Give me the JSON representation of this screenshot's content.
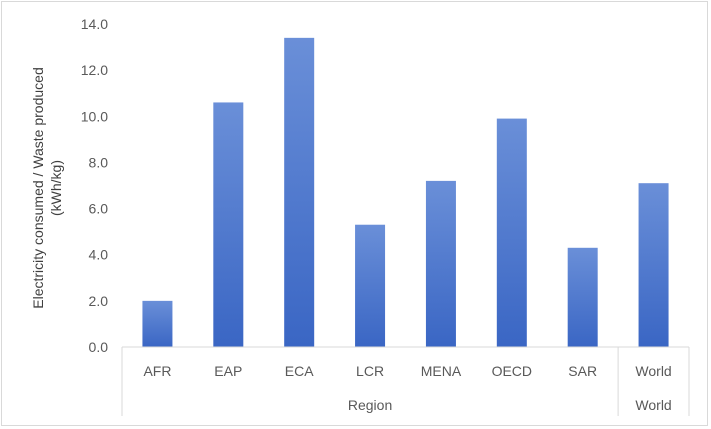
{
  "chart_data": {
    "type": "bar",
    "ylabel_lines": [
      "Electricity consumed / Waste produced",
      "(kWh/kg)"
    ],
    "ylim": [
      0,
      14
    ],
    "yticks": [
      "0.0",
      "2.0",
      "4.0",
      "6.0",
      "8.0",
      "10.0",
      "12.0",
      "14.0"
    ],
    "categories": [
      "AFR",
      "EAP",
      "ECA",
      "LCR",
      "MENA",
      "OECD",
      "SAR",
      "World"
    ],
    "values": [
      2.0,
      10.6,
      13.4,
      5.3,
      7.2,
      9.9,
      4.3,
      7.1
    ],
    "groups": [
      {
        "label": "Region",
        "categories": [
          "AFR",
          "EAP",
          "ECA",
          "LCR",
          "MENA",
          "OECD",
          "SAR"
        ]
      },
      {
        "label": "World",
        "categories": [
          "World"
        ]
      }
    ],
    "grid": false,
    "bar_color_top": "#6a8fd8",
    "bar_color_bottom": "#3a66c4"
  }
}
